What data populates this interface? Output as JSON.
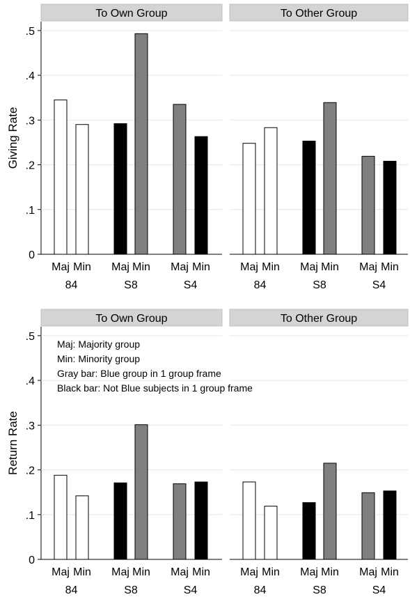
{
  "chart_data": [
    {
      "type": "bar",
      "ylabel": "Giving Rate",
      "ylim": [
        0,
        0.52
      ],
      "yticks": [
        0,
        0.1,
        0.2,
        0.3,
        0.4,
        0.5
      ],
      "ytick_labels": [
        "0",
        ".1",
        ".2",
        ".3",
        ".4",
        ".5"
      ],
      "grid": true,
      "panels": [
        {
          "title": "To Own Group",
          "groups": [
            {
              "label": "84",
              "bars": [
                {
                  "label": "Maj",
                  "value": 0.345,
                  "fill": "white"
                },
                {
                  "label": "Min",
                  "value": 0.29,
                  "fill": "white"
                }
              ]
            },
            {
              "label": "S8",
              "bars": [
                {
                  "label": "Maj",
                  "value": 0.292,
                  "fill": "black"
                },
                {
                  "label": "Min",
                  "value": 0.493,
                  "fill": "gray"
                }
              ]
            },
            {
              "label": "S4",
              "bars": [
                {
                  "label": "Maj",
                  "value": 0.335,
                  "fill": "gray"
                },
                {
                  "label": "Min",
                  "value": 0.263,
                  "fill": "black"
                }
              ]
            }
          ]
        },
        {
          "title": "To Other Group",
          "groups": [
            {
              "label": "84",
              "bars": [
                {
                  "label": "Maj",
                  "value": 0.248,
                  "fill": "white"
                },
                {
                  "label": "Min",
                  "value": 0.283,
                  "fill": "white"
                }
              ]
            },
            {
              "label": "S8",
              "bars": [
                {
                  "label": "Maj",
                  "value": 0.253,
                  "fill": "black"
                },
                {
                  "label": "Min",
                  "value": 0.339,
                  "fill": "gray"
                }
              ]
            },
            {
              "label": "S4",
              "bars": [
                {
                  "label": "Maj",
                  "value": 0.219,
                  "fill": "gray"
                },
                {
                  "label": "Min",
                  "value": 0.208,
                  "fill": "black"
                }
              ]
            }
          ]
        }
      ]
    },
    {
      "type": "bar",
      "ylabel": "Return Rate",
      "ylim": [
        0,
        0.52
      ],
      "yticks": [
        0,
        0.1,
        0.2,
        0.3,
        0.4,
        0.5
      ],
      "ytick_labels": [
        "0",
        ".1",
        ".2",
        ".3",
        ".4",
        ".5"
      ],
      "grid": true,
      "annotations": [
        "Maj: Majority group",
        "Min: Minority group",
        "Gray bar: Blue group in 1 group frame",
        "Black bar: Not Blue subjects in 1 group frame"
      ],
      "panels": [
        {
          "title": "To Own Group",
          "groups": [
            {
              "label": "84",
              "bars": [
                {
                  "label": "Maj",
                  "value": 0.188,
                  "fill": "white"
                },
                {
                  "label": "Min",
                  "value": 0.142,
                  "fill": "white"
                }
              ]
            },
            {
              "label": "S8",
              "bars": [
                {
                  "label": "Maj",
                  "value": 0.171,
                  "fill": "black"
                },
                {
                  "label": "Min",
                  "value": 0.301,
                  "fill": "gray"
                }
              ]
            },
            {
              "label": "S4",
              "bars": [
                {
                  "label": "Maj",
                  "value": 0.169,
                  "fill": "gray"
                },
                {
                  "label": "Min",
                  "value": 0.173,
                  "fill": "black"
                }
              ]
            }
          ]
        },
        {
          "title": "To Other Group",
          "groups": [
            {
              "label": "84",
              "bars": [
                {
                  "label": "Maj",
                  "value": 0.173,
                  "fill": "white"
                },
                {
                  "label": "Min",
                  "value": 0.119,
                  "fill": "white"
                }
              ]
            },
            {
              "label": "S8",
              "bars": [
                {
                  "label": "Maj",
                  "value": 0.127,
                  "fill": "black"
                },
                {
                  "label": "Min",
                  "value": 0.215,
                  "fill": "gray"
                }
              ]
            },
            {
              "label": "S4",
              "bars": [
                {
                  "label": "Maj",
                  "value": 0.149,
                  "fill": "gray"
                },
                {
                  "label": "Min",
                  "value": 0.153,
                  "fill": "black"
                }
              ]
            }
          ]
        }
      ]
    }
  ],
  "colors": {
    "white": "#ffffff",
    "black": "#000000",
    "gray": "#808080",
    "header_fill": "#d4d4d4",
    "grid": "#e6e6e6",
    "bar_stroke": "#000000",
    "axis": "#000000"
  }
}
